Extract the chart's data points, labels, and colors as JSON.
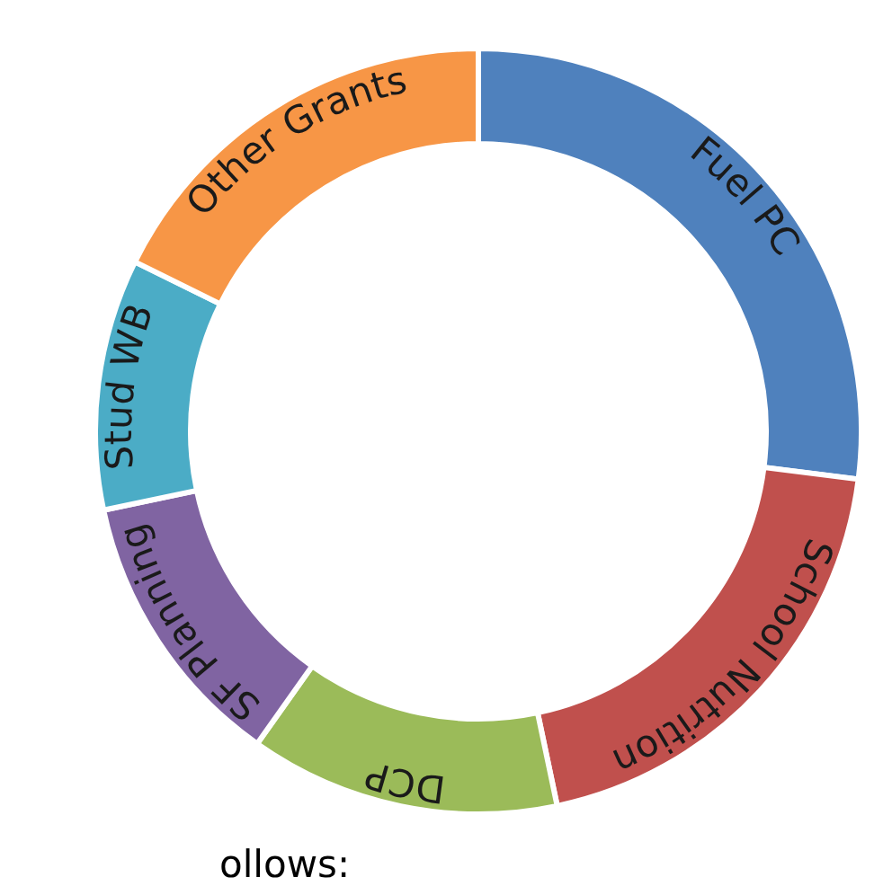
{
  "chart_data": {
    "type": "donut",
    "categories": [
      "Fuel PC",
      "School Nutrition",
      "DCP",
      "SF Planning",
      "Stud WB",
      "Other Grants"
    ],
    "values": [
      27,
      19.7,
      13.1,
      11.9,
      10.6,
      17.7
    ],
    "colors": [
      "#4f81bd",
      "#c0504d",
      "#9bbb59",
      "#8064a2",
      "#4bacc6",
      "#f79646"
    ],
    "legend": false,
    "annotations": [
      "ollows:"
    ]
  }
}
